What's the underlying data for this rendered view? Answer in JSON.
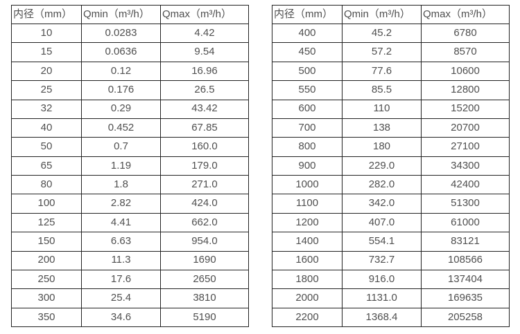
{
  "page": {
    "background_color": "#ffffff",
    "text_color": "#4f4f4f",
    "border_color": "#212121"
  },
  "tables": [
    {
      "name": "flow-range-table-small-diameters",
      "headers": [
        "内径（mm）",
        "Qmin（m³/h）",
        "Qmax（m³/h）"
      ],
      "rows": [
        [
          "10",
          "0.0283",
          "4.42"
        ],
        [
          "15",
          "0.0636",
          "9.54"
        ],
        [
          "20",
          "0.12",
          "16.96"
        ],
        [
          "25",
          "0.176",
          "26.5"
        ],
        [
          "32",
          "0.29",
          "43.42"
        ],
        [
          "40",
          "0.452",
          "67.85"
        ],
        [
          "50",
          "0.7",
          "160.0"
        ],
        [
          "65",
          "1.19",
          "179.0"
        ],
        [
          "80",
          "1.8",
          "271.0"
        ],
        [
          "100",
          "2.82",
          "424.0"
        ],
        [
          "125",
          "4.41",
          "662.0"
        ],
        [
          "150",
          "6.63",
          "954.0"
        ],
        [
          "200",
          "11.3",
          "1690"
        ],
        [
          "250",
          "17.6",
          "2650"
        ],
        [
          "300",
          "25.4",
          "3810"
        ],
        [
          "350",
          "34.6",
          "5190"
        ]
      ]
    },
    {
      "name": "flow-range-table-large-diameters",
      "headers": [
        "内径（mm）",
        "Qmin（m³/h）",
        "Qmax（m³/h）"
      ],
      "rows": [
        [
          "400",
          "45.2",
          "6780"
        ],
        [
          "450",
          "57.2",
          "8570"
        ],
        [
          "500",
          "77.6",
          "10600"
        ],
        [
          "550",
          "85.5",
          "12800"
        ],
        [
          "600",
          "110",
          "15200"
        ],
        [
          "700",
          "138",
          "20700"
        ],
        [
          "800",
          "180",
          "27100"
        ],
        [
          "900",
          "229.0",
          "34300"
        ],
        [
          "1000",
          "282.0",
          "42400"
        ],
        [
          "1100",
          "342.0",
          "51300"
        ],
        [
          "1200",
          "407.0",
          "61000"
        ],
        [
          "1400",
          "554.1",
          "83121"
        ],
        [
          "1600",
          "732.7",
          "108566"
        ],
        [
          "1800",
          "916.0",
          "137404"
        ],
        [
          "2000",
          "1131.0",
          "169635"
        ],
        [
          "2200",
          "1368.4",
          "205258"
        ]
      ]
    }
  ]
}
